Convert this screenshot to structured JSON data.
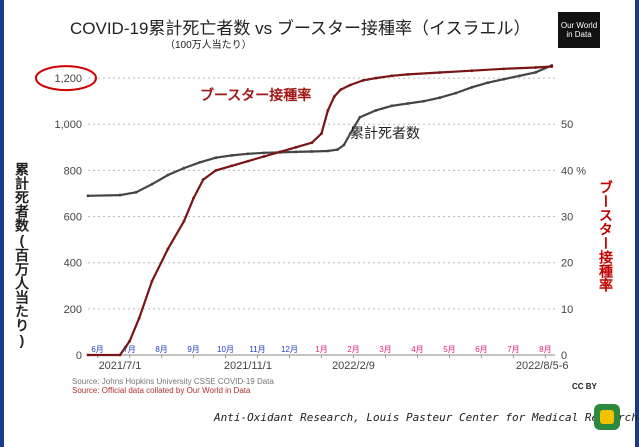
{
  "chart_data": {
    "type": "line",
    "title": "COVID-19累計死亡者数 vs ブースター接種率（イスラエル）",
    "subtitle": "（100万人当たり）",
    "ylabel_left": "累計死者数(百万人当たり)",
    "ylabel_right": "ブースター接種率",
    "y_left_range": [
      0,
      1300
    ],
    "y_right_range": [
      0,
      65
    ],
    "y_left_ticks": [
      "0",
      "200",
      "400",
      "600",
      "800",
      "1,000",
      "1,200"
    ],
    "y_right_ticks": [
      "0",
      "10",
      "20",
      "30",
      "40 %",
      "50"
    ],
    "x_tick_labels": [
      {
        "label": "2021/7/1",
        "month_index": 1
      },
      {
        "label": "2021/11/1",
        "month_index": 5
      },
      {
        "label": "2022/2/9",
        "month_index": 8.3
      },
      {
        "label": "2022/8/5-6",
        "month_index": 14.2
      }
    ],
    "x_range": [
      0,
      14.6
    ],
    "months": [
      {
        "label": "6月",
        "color": "#1f3fbf"
      },
      {
        "label": "7月",
        "color": "#1f3fbf"
      },
      {
        "label": "8月",
        "color": "#1f3fbf"
      },
      {
        "label": "9月",
        "color": "#1f3fbf"
      },
      {
        "label": "10月",
        "color": "#1f3fbf"
      },
      {
        "label": "11月",
        "color": "#1f3fbf"
      },
      {
        "label": "12月",
        "color": "#1f3fbf"
      },
      {
        "label": "1月",
        "color": "#e0207a"
      },
      {
        "label": "2月",
        "color": "#e0207a"
      },
      {
        "label": "3月",
        "color": "#e0207a"
      },
      {
        "label": "4月",
        "color": "#e0207a"
      },
      {
        "label": "5月",
        "color": "#e0207a"
      },
      {
        "label": "6月",
        "color": "#e0207a"
      },
      {
        "label": "7月",
        "color": "#e0207a"
      },
      {
        "label": "8月",
        "color": "#e0207a"
      }
    ],
    "series": [
      {
        "name": "累計死者数",
        "axis": "left",
        "color": "#444444",
        "label": "累計死者数",
        "x": [
          0,
          1.0,
          1.5,
          2.0,
          2.5,
          3.0,
          3.5,
          4.0,
          4.5,
          5.0,
          5.5,
          6.0,
          6.5,
          7.0,
          7.5,
          7.8,
          8.0,
          8.2,
          8.5,
          9.0,
          9.5,
          10.0,
          10.5,
          11.0,
          11.5,
          12.0,
          12.5,
          13.0,
          13.5,
          14.0,
          14.5
        ],
        "y": [
          690,
          693,
          705,
          740,
          780,
          810,
          835,
          855,
          865,
          872,
          876,
          878,
          880,
          882,
          884,
          890,
          910,
          960,
          1030,
          1060,
          1080,
          1090,
          1100,
          1115,
          1135,
          1160,
          1180,
          1195,
          1210,
          1225,
          1255
        ]
      },
      {
        "name": "ブースター接種率",
        "axis": "right",
        "color": "#7a1515",
        "label": "ブースター接種率",
        "x": [
          0,
          1.0,
          1.3,
          1.6,
          2.0,
          2.5,
          3.0,
          3.3,
          3.6,
          4.0,
          4.5,
          5.0,
          5.5,
          6.0,
          6.5,
          7.0,
          7.3,
          7.5,
          7.7,
          7.9,
          8.2,
          8.6,
          9.0,
          9.5,
          10.0,
          11.0,
          12.0,
          13.0,
          14.0,
          14.5
        ],
        "y": [
          0,
          0,
          3,
          8,
          16,
          23,
          29,
          34,
          38,
          40,
          41,
          42,
          43,
          44,
          45,
          46,
          48,
          53,
          56,
          57.5,
          58.5,
          59.5,
          60,
          60.5,
          60.8,
          61.2,
          61.6,
          62,
          62.3,
          62.5
        ]
      }
    ]
  },
  "source_line1": "Source: Johns Hopkins University CSSE COVID-19 Data",
  "source_line2": "Source: Official data collated by Our World in Data",
  "logo_text": "Our World in Data",
  "cc_label": "CC BY",
  "footer_text": "Anti-Oxidant Research, Louis Pasteur Center for Medical Research."
}
